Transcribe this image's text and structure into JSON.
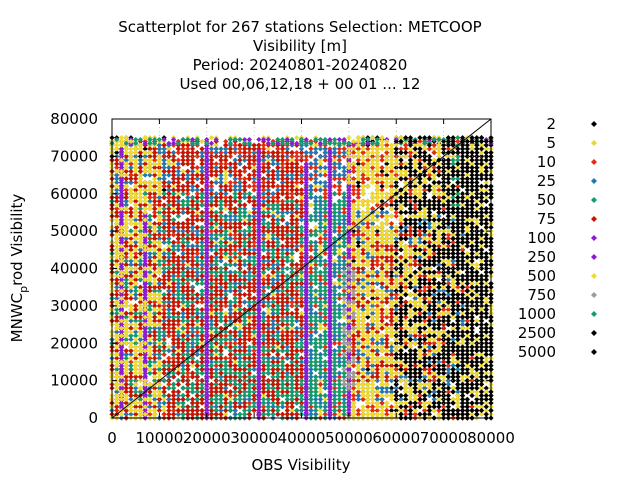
{
  "chart_data": {
    "type": "scatter",
    "title_lines": [
      "Scatterplot for  267 stations Selection: METCOOP",
      "Visibility [m]",
      "Period: 20240801-20240820",
      "Used  00,06,12,18 + 00 01 ... 12"
    ],
    "xlabel": "OBS Visibility",
    "ylabel_prefix": "MNWC",
    "ylabel_sub": "p",
    "ylabel_suffix": "rod Visibility",
    "xlim": [
      0,
      80000
    ],
    "ylim": [
      0,
      80000
    ],
    "xticks": [
      "0",
      "10000",
      "20000",
      "30000",
      "40000",
      "50000",
      "60000",
      "70000",
      "80000"
    ],
    "yticks": [
      "0",
      "10000",
      "20000",
      "30000",
      "40000",
      "50000",
      "60000",
      "70000",
      "80000"
    ],
    "grid": true,
    "legend_position": "right",
    "diagonal": "y = x",
    "series": [
      {
        "name": "2",
        "color": "#000000",
        "regions": [
          [
            50000,
            80000,
            0,
            75000
          ],
          [
            0,
            12000,
            60000,
            75000
          ]
        ]
      },
      {
        "name": "5",
        "color": "#e8d832",
        "regions": [
          [
            0,
            80000,
            0,
            75000
          ]
        ]
      },
      {
        "name": "10",
        "color": "#e62a12",
        "regions": [
          [
            0,
            76000,
            0,
            74000
          ]
        ]
      },
      {
        "name": "25",
        "color": "#1f78b4",
        "regions": [
          [
            0,
            50000,
            0,
            73000
          ],
          [
            52000,
            74000,
            5000,
            55000
          ]
        ]
      },
      {
        "name": "50",
        "color": "#119b6e",
        "regions": [
          [
            0,
            50000,
            3000,
            60000
          ],
          [
            15000,
            50000,
            0,
            15000
          ]
        ]
      },
      {
        "name": "75",
        "color": "#c81400",
        "regions": [
          [
            0,
            40000,
            0,
            74000
          ],
          [
            50000,
            70000,
            10000,
            50000
          ]
        ]
      },
      {
        "name": "100",
        "color": "#8b1cd6",
        "lines": [
          [
            2000,
            2000,
            72000
          ],
          [
            7000,
            0,
            55000
          ],
          [
            20000,
            0,
            73000
          ],
          [
            31000,
            0,
            72000
          ],
          [
            41000,
            0,
            68000
          ],
          [
            46000,
            0,
            72000
          ],
          [
            50000,
            0,
            74000
          ]
        ]
      },
      {
        "name": "250",
        "color": "#8b1cd6",
        "regions": [
          [
            0,
            80000,
            73500,
            75000
          ]
        ]
      },
      {
        "name": "500",
        "color": "#f0dc2e",
        "regions": [
          [
            50000,
            80000,
            0,
            75000
          ],
          [
            0,
            10000,
            0,
            75000
          ]
        ]
      },
      {
        "name": "750",
        "color": "#9c9c9c",
        "regions": [
          [
            49000,
            51000,
            8000,
            40000
          ]
        ]
      },
      {
        "name": "1000",
        "color": "#119b6e",
        "regions": [
          [
            0,
            80000,
            73500,
            75000
          ],
          [
            72000,
            73500,
            55000,
            75000
          ]
        ]
      },
      {
        "name": "2500",
        "color": "#000000",
        "regions": [
          [
            60000,
            80000,
            0,
            75000
          ]
        ]
      },
      {
        "name": "5000",
        "color": "#000000",
        "regions": [
          [
            70000,
            80000,
            0,
            75000
          ]
        ]
      }
    ]
  }
}
